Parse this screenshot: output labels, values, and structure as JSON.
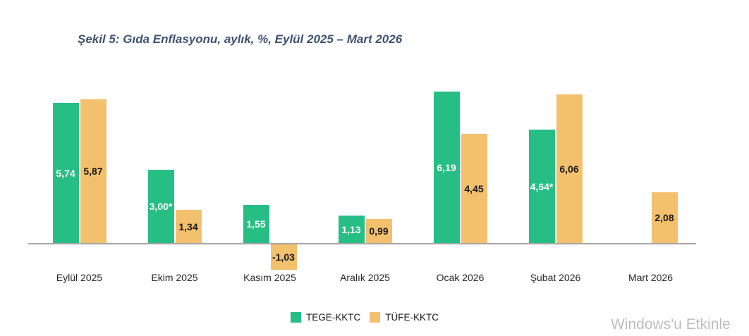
{
  "title": "Şekil 5: Gıda Enflasyonu, aylık, %, Eylül 2025 – Mart 2026",
  "watermark": "Windows'u Etkinle",
  "colors": {
    "tege_green": "#27be86",
    "tufe_orange": "#f3c06e",
    "title_text": "#3e5270",
    "axis_line": "#a6a6a6",
    "label_on_green": "#ffffff",
    "label_on_orange": "#1a1a1a",
    "watermark_text": "#bdbdbd"
  },
  "legend": [
    {
      "name": "TEGE-KKTC",
      "color": "#27be86"
    },
    {
      "name": "TÜFE-KKTC",
      "color": "#f3c06e"
    }
  ],
  "chart_data": {
    "type": "bar",
    "title": "Şekil 5: Gıda Enflasyonu, aylık, %, Eylül 2025 – Mart 2026",
    "categories": [
      "Eylül 2025",
      "Ekim 2025",
      "Kasım 2025",
      "Aralık 2025",
      "Ocak 2026",
      "Şubat 2026",
      "Mart 2026"
    ],
    "series": [
      {
        "name": "TEGE-KKTC",
        "color": "#27be86",
        "label_color": "#ffffff",
        "values": [
          5.74,
          3.0,
          1.55,
          1.13,
          6.19,
          4.64,
          null
        ],
        "labels": [
          "5,74",
          "3,00*",
          "1,55",
          "1,13",
          "6,19",
          "4,64*",
          null
        ]
      },
      {
        "name": "TÜFE-KKTC",
        "color": "#f3c06e",
        "label_color": "#1a1a1a",
        "values": [
          5.87,
          1.34,
          -1.03,
          0.99,
          4.45,
          6.06,
          2.08
        ],
        "labels": [
          "5,87",
          "1,34",
          "-1,03",
          "0,99",
          "4,45",
          "6,06",
          "2,08"
        ]
      }
    ],
    "ylim": [
      -1.5,
      6.5
    ],
    "grid": false,
    "y_axis_visible": false,
    "legend_position": "bottom",
    "data_labels": "inside-center"
  }
}
